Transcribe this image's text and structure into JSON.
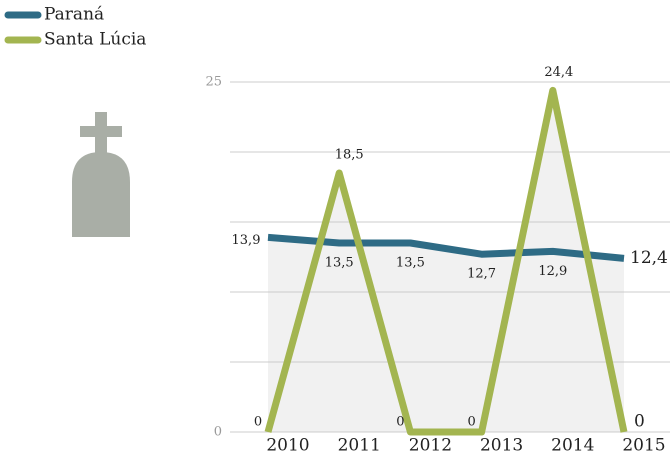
{
  "chart_data": {
    "type": "line",
    "categories": [
      "2010",
      "2011",
      "2012",
      "2013",
      "2014",
      "2015"
    ],
    "series": [
      {
        "name": "Paraná",
        "color": "#2e6b85",
        "values": [
          13.9,
          13.5,
          13.5,
          12.7,
          12.9,
          12.4
        ],
        "value_labels": [
          "13,9",
          "13,5",
          "13,5",
          "12,7",
          "12,9",
          "12,4"
        ]
      },
      {
        "name": "Santa Lúcia",
        "color": "#a3b550",
        "values": [
          0,
          18.5,
          0,
          0,
          24.4,
          0
        ],
        "value_labels": [
          "0",
          "18,5",
          "0",
          "0",
          "24,4",
          "0"
        ]
      }
    ],
    "ylim": [
      0,
      25
    ],
    "yticks": [
      0,
      25
    ],
    "ygrid": [
      0,
      5,
      10,
      15,
      20,
      25
    ],
    "grid": true
  }
}
